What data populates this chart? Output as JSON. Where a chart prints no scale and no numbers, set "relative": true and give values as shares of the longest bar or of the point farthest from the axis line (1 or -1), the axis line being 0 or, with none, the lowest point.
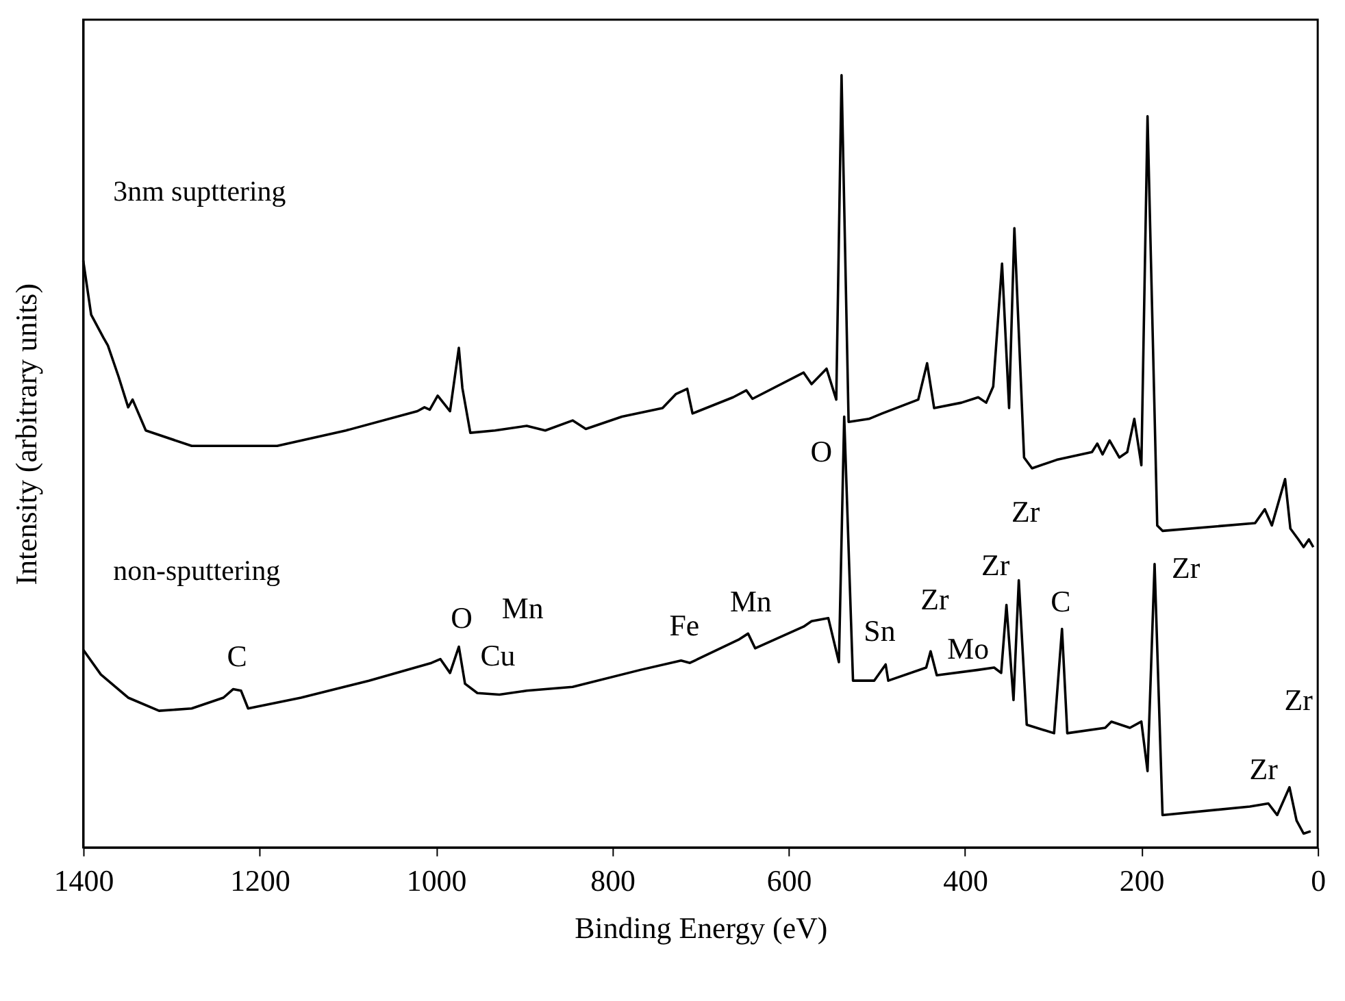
{
  "chart_data": {
    "type": "line",
    "relative": true,
    "xlabel": "Binding Energy (eV)",
    "ylabel": "Intensity (arbitrary units)",
    "xlim": [
      1400,
      0
    ],
    "xticks": [
      1400,
      1200,
      1000,
      800,
      600,
      400,
      200,
      0
    ],
    "grid": false,
    "tick_labels": "x",
    "marker": "none",
    "line_style": "solid",
    "series": [
      {
        "name": "3nm supttering",
        "color": "#000000",
        "x": [
          1400,
          1391,
          1377,
          1372,
          1360,
          1349,
          1344,
          1329,
          1277,
          1241,
          1180,
          1102,
          1021,
          1013,
          1007,
          998,
          984,
          974,
          970,
          961,
          933,
          897,
          876,
          845,
          830,
          789,
          743,
          728,
          715,
          709,
          663,
          648,
          641,
          583,
          574,
          557,
          546,
          540,
          532,
          509,
          494,
          453,
          443,
          435,
          404,
          385,
          376,
          368,
          358,
          350,
          344,
          333,
          324,
          296,
          256,
          250,
          244,
          236,
          225,
          216,
          208,
          200,
          193,
          182,
          176,
          71,
          60,
          52,
          37,
          31,
          22,
          16,
          10,
          5
        ],
        "values": [
          0.76,
          0.69,
          0.66,
          0.65,
          0.61,
          0.57,
          0.58,
          0.54,
          0.52,
          0.52,
          0.52,
          0.54,
          0.565,
          0.57,
          0.567,
          0.585,
          0.565,
          0.647,
          0.595,
          0.537,
          0.54,
          0.546,
          0.54,
          0.553,
          0.542,
          0.558,
          0.569,
          0.587,
          0.594,
          0.562,
          0.583,
          0.592,
          0.581,
          0.615,
          0.6,
          0.62,
          0.58,
          1.0,
          0.551,
          0.555,
          0.562,
          0.58,
          0.627,
          0.569,
          0.576,
          0.583,
          0.576,
          0.597,
          0.756,
          0.569,
          0.802,
          0.505,
          0.491,
          0.502,
          0.512,
          0.523,
          0.509,
          0.527,
          0.505,
          0.512,
          0.555,
          0.495,
          0.947,
          0.417,
          0.41,
          0.42,
          0.438,
          0.417,
          0.477,
          0.413,
          0.399,
          0.389,
          0.399,
          0.389
        ]
      },
      {
        "name": "non-sputtering",
        "color": "#000000",
        "x": [
          1400,
          1380,
          1349,
          1314,
          1277,
          1241,
          1230,
          1221,
          1213,
          1153,
          1076,
          1005,
          995,
          984,
          974,
          967,
          953,
          928,
          897,
          845,
          768,
          722,
          712,
          657,
          646,
          638,
          583,
          574,
          555,
          543,
          537,
          527,
          503,
          490,
          487,
          444,
          439,
          432,
          385,
          367,
          359,
          353,
          345,
          339,
          330,
          299,
          290,
          284,
          241,
          234,
          213,
          200,
          193,
          185,
          176,
          77,
          56,
          46,
          32,
          24,
          16,
          8
        ],
        "values": [
          0.256,
          0.224,
          0.194,
          0.177,
          0.18,
          0.194,
          0.205,
          0.203,
          0.18,
          0.194,
          0.216,
          0.239,
          0.244,
          0.226,
          0.26,
          0.212,
          0.2,
          0.198,
          0.203,
          0.208,
          0.23,
          0.242,
          0.239,
          0.269,
          0.277,
          0.258,
          0.286,
          0.293,
          0.297,
          0.24,
          0.558,
          0.216,
          0.216,
          0.237,
          0.216,
          0.233,
          0.254,
          0.223,
          0.23,
          0.233,
          0.226,
          0.314,
          0.191,
          0.346,
          0.159,
          0.148,
          0.283,
          0.148,
          0.155,
          0.163,
          0.155,
          0.163,
          0.099,
          0.367,
          0.042,
          0.053,
          0.057,
          0.042,
          0.078,
          0.035,
          0.018,
          0.021
        ]
      }
    ],
    "annotations": [
      {
        "text": "C",
        "x": 1221,
        "y": 0.203
      },
      {
        "text": "O",
        "x": 974,
        "y": 0.26
      },
      {
        "text": "Mn",
        "x": 897,
        "y": 0.203
      },
      {
        "text": "Cu",
        "x": 953,
        "y": 0.2
      },
      {
        "text": "Fe",
        "x": 712,
        "y": 0.239
      },
      {
        "text": "Mn",
        "x": 646,
        "y": 0.277
      },
      {
        "text": "O",
        "x": 532,
        "y": 0.551
      },
      {
        "text": "Sn",
        "x": 503,
        "y": 0.216
      },
      {
        "text": "Zr",
        "x": 439,
        "y": 0.254
      },
      {
        "text": "Mo",
        "x": 432,
        "y": 0.223
      },
      {
        "text": "Zr",
        "x": 353,
        "y": 0.314
      },
      {
        "text": "Zr",
        "x": 339,
        "y": 0.346
      },
      {
        "text": "C",
        "x": 290,
        "y": 0.283
      },
      {
        "text": "Zr",
        "x": 185,
        "y": 0.367
      },
      "Zr",
      {
        "text": "Zr",
        "x": 32,
        "y": 0.078
      }
    ]
  }
}
